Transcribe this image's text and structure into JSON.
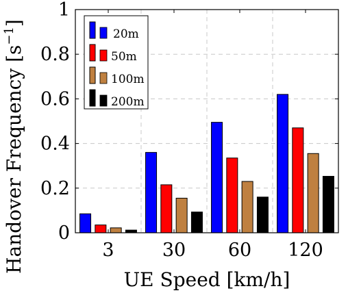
{
  "chart_data": {
    "type": "bar",
    "title": "",
    "xlabel": "UE Speed [km/h]",
    "ylabel": "Handover Frequency [s",
    "ylabel_unit_sup": "−1",
    "ylabel_close": "]",
    "categories": [
      "3",
      "30",
      "60",
      "120"
    ],
    "ylim": [
      0,
      1
    ],
    "yticks": [
      "0",
      "0.2",
      "0.4",
      "0.6",
      "0.8",
      "1"
    ],
    "grid": true,
    "legend_position": "top-left",
    "series": [
      {
        "name": "20m",
        "color": "#0000ff",
        "values": [
          0.085,
          0.36,
          0.495,
          0.62
        ]
      },
      {
        "name": "50m",
        "color": "#ff0000",
        "values": [
          0.035,
          0.215,
          0.335,
          0.47
        ]
      },
      {
        "name": "100m",
        "color": "#bf8040",
        "values": [
          0.022,
          0.155,
          0.23,
          0.355
        ]
      },
      {
        "name": "200m",
        "color": "#000000",
        "values": [
          0.012,
          0.093,
          0.16,
          0.253
        ]
      }
    ]
  }
}
